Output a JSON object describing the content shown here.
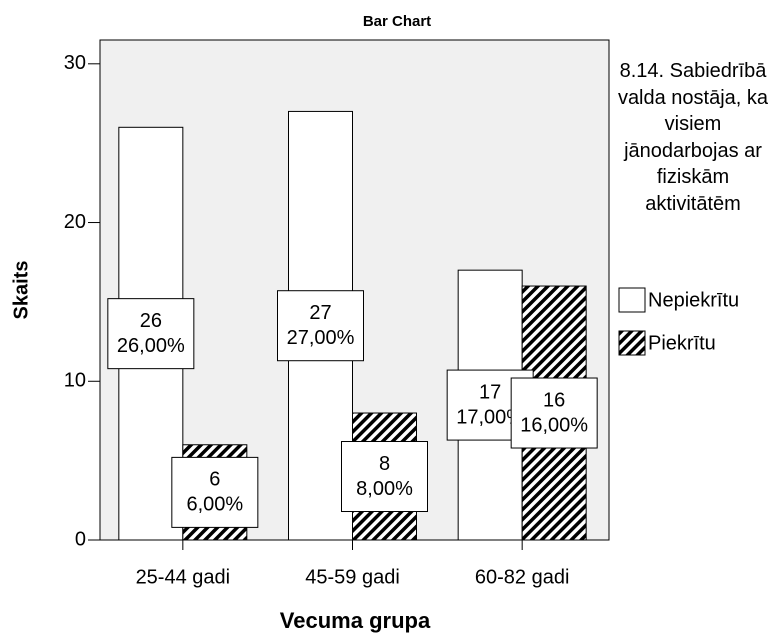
{
  "chart_data": {
    "type": "bar",
    "title": "Bar Chart",
    "x_label": "Vecuma grupa",
    "y_label": "Skaits",
    "legend_title": "8.14. Sabiedrībā valda nostāja, ka visiem jānodarbojas ar fiziskām aktivitātēm",
    "categories": [
      "25-44 gadi",
      "45-59 gadi",
      "60-82 gadi"
    ],
    "series": [
      {
        "name": "Nepiekrītu",
        "color": "#ffffff",
        "hatch": false,
        "values": [
          26,
          27,
          17
        ],
        "value_labels": [
          "26,00%",
          "27,00%",
          "17,00%"
        ]
      },
      {
        "name": "Piekrītu",
        "color": "#000000",
        "hatch": true,
        "values": [
          6,
          8,
          16
        ],
        "value_labels": [
          "6,00%",
          "8,00%",
          "16,00%"
        ]
      }
    ],
    "ylim": [
      0,
      31.5
    ],
    "yticks": [
      0,
      10,
      20,
      30
    ],
    "grid": false,
    "legend": "right"
  }
}
